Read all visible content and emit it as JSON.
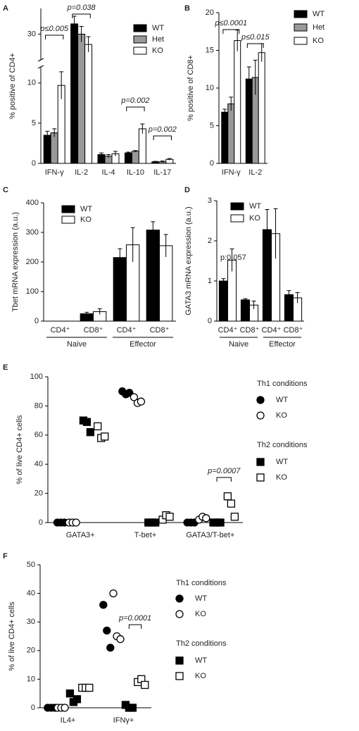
{
  "chart_data": [
    {
      "type": "bar",
      "panel": "A",
      "y_label": "% positive of CD4+",
      "categories": [
        "IFN-γ",
        "IL-2",
        "IL-4",
        "IL-10",
        "IL-17"
      ],
      "series": [
        {
          "name": "WT",
          "color": "#000000",
          "values": [
            3.5,
            32,
            1.1,
            1.3,
            0.2
          ],
          "errors": [
            0.5,
            1.5,
            0.2,
            0.1,
            0.05
          ]
        },
        {
          "name": "Het",
          "color": "#999999",
          "values": [
            3.8,
            30,
            0.9,
            1.5,
            0.2
          ],
          "errors": [
            0.5,
            1.5,
            0.2,
            0.1,
            0.1
          ]
        },
        {
          "name": "KO",
          "color": "#ffffff",
          "values": [
            9.7,
            28,
            1.2,
            4.3,
            0.5
          ],
          "errors": [
            1.7,
            1.5,
            0.3,
            0.6,
            0.1
          ]
        }
      ],
      "ylim": [
        0,
        35
      ],
      "y_break": [
        12,
        25
      ],
      "yticks": [
        0,
        5,
        10,
        30
      ],
      "annotations": [
        "p≤0.005",
        "p=0.038",
        "p=0.002",
        "p=0.002"
      ]
    },
    {
      "type": "bar",
      "panel": "B",
      "y_label": "% positive of CD8+",
      "categories": [
        "IFN-γ",
        "IL-2"
      ],
      "series": [
        {
          "name": "WT",
          "color": "#000000",
          "values": [
            6.8,
            11.2
          ],
          "errors": [
            0.4,
            1.6
          ]
        },
        {
          "name": "Het",
          "color": "#999999",
          "values": [
            7.9,
            11.4
          ],
          "errors": [
            0.9,
            2.3
          ]
        },
        {
          "name": "KO",
          "color": "#ffffff",
          "values": [
            16.3,
            14.7
          ],
          "errors": [
            1.4,
            1.2
          ]
        }
      ],
      "ylim": [
        0,
        20
      ],
      "yticks": [
        0,
        5,
        10,
        15,
        20
      ],
      "annotations": [
        "p≤0.0001",
        "p≤0.015"
      ]
    },
    {
      "type": "bar",
      "panel": "C",
      "y_label": "Tbet mRNA expression (a.u.)",
      "categories": [
        "CD4⁺",
        "CD8⁺",
        "CD4⁺",
        "CD8⁺"
      ],
      "group_labels": [
        "Naive",
        "Effector"
      ],
      "series": [
        {
          "name": "WT",
          "color": "#000000",
          "values": [
            0,
            25,
            215,
            308
          ],
          "errors": [
            0,
            5,
            30,
            28
          ]
        },
        {
          "name": "KO",
          "color": "#ffffff",
          "values": [
            0,
            32,
            258,
            255
          ],
          "errors": [
            0,
            10,
            58,
            38
          ]
        }
      ],
      "ylim": [
        0,
        400
      ],
      "yticks": [
        0,
        100,
        200,
        300,
        400
      ],
      "annotations": []
    },
    {
      "type": "bar",
      "panel": "D",
      "y_label": "GATA3 mRNA expression (a.u.)",
      "categories": [
        "CD4⁺",
        "CD8⁺",
        "CD4⁺",
        "CD8⁺"
      ],
      "group_labels": [
        "Naive",
        "Effector"
      ],
      "series": [
        {
          "name": "WT",
          "color": "#000000",
          "values": [
            1.0,
            0.53,
            2.28,
            0.66
          ],
          "errors": [
            0.06,
            0.03,
            0.5,
            0.1
          ]
        },
        {
          "name": "KO",
          "color": "#ffffff",
          "values": [
            1.52,
            0.4,
            2.18,
            0.58
          ],
          "errors": [
            0.28,
            0.1,
            0.62,
            0.13
          ]
        }
      ],
      "ylim": [
        0,
        3
      ],
      "yticks": [
        0,
        1,
        2,
        3
      ],
      "annotations": [
        "p:0.057"
      ]
    },
    {
      "type": "dot",
      "panel": "E",
      "y_label": "% of live CD4+ cells",
      "categories": [
        "GATA3+",
        "T-bet+",
        "GATA3/T-bet+"
      ],
      "legend_titles": [
        "Th1 conditions",
        "Th2 conditions"
      ],
      "series": [
        {
          "name": "WT",
          "marker": "circle",
          "filled": true,
          "color": "#000000",
          "values": [
            [
              0,
              0,
              0
            ],
            [
              90,
              88,
              89
            ],
            [
              0,
              0,
              0
            ]
          ]
        },
        {
          "name": "KO",
          "marker": "circle",
          "filled": false,
          "color": "#000000",
          "values": [
            [
              0,
              0,
              0
            ],
            [
              86,
              82,
              83
            ],
            [
              2,
              4,
              3
            ]
          ]
        },
        {
          "name": "WT",
          "marker": "square",
          "filled": true,
          "color": "#000000",
          "values": [
            [
              70,
              69,
              62
            ],
            [
              0,
              0,
              0
            ],
            [
              0,
              0,
              0
            ]
          ]
        },
        {
          "name": "KO",
          "marker": "square",
          "filled": false,
          "color": "#000000",
          "values": [
            [
              66,
              58,
              59
            ],
            [
              2,
              5,
              4
            ],
            [
              18,
              13,
              4
            ]
          ]
        }
      ],
      "ylim": [
        0,
        100
      ],
      "yticks": [
        0,
        20,
        40,
        60,
        80,
        100
      ],
      "annotations": [
        "p=0.0007"
      ]
    },
    {
      "type": "dot",
      "panel": "F",
      "y_label": "% of live CD4+ cells",
      "categories": [
        "IL4+",
        "IFNγ+"
      ],
      "legend_titles": [
        "Th1 conditions",
        "Th2 conditions"
      ],
      "series": [
        {
          "name": "WT",
          "marker": "circle",
          "filled": true,
          "color": "#000000",
          "values": [
            [
              0,
              0,
              0
            ],
            [
              36,
              27,
              21
            ]
          ]
        },
        {
          "name": "KO",
          "marker": "circle",
          "filled": false,
          "color": "#000000",
          "values": [
            [
              0,
              0,
              0
            ],
            [
              40,
              25,
              24
            ]
          ]
        },
        {
          "name": "WT",
          "marker": "square",
          "filled": true,
          "color": "#000000",
          "values": [
            [
              5,
              2,
              3
            ],
            [
              1,
              0,
              0
            ]
          ]
        },
        {
          "name": "KO",
          "marker": "square",
          "filled": false,
          "color": "#000000",
          "values": [
            [
              7,
              7,
              7
            ],
            [
              9,
              10,
              8
            ]
          ]
        }
      ],
      "ylim": [
        0,
        50
      ],
      "yticks": [
        0,
        10,
        20,
        30,
        40,
        50
      ],
      "annotations": [
        "p=0.0001"
      ]
    }
  ]
}
